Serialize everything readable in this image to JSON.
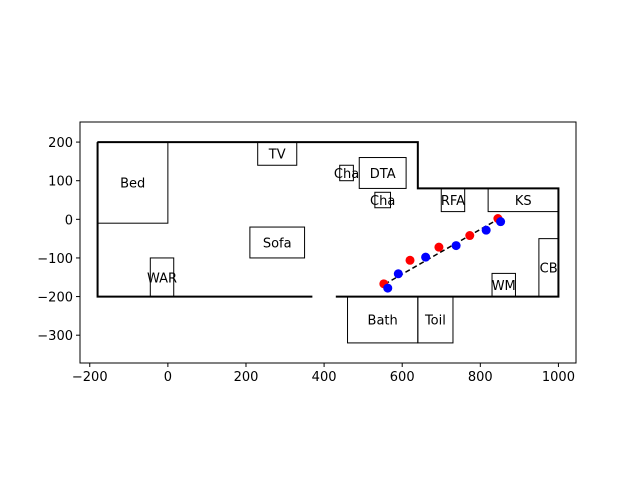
{
  "chart_data": {
    "type": "scatter",
    "title": "",
    "xlabel": "",
    "ylabel": "",
    "xlim": [
      -225,
      1045
    ],
    "ylim": [
      -372,
      252
    ],
    "xticks": [
      -200,
      0,
      200,
      400,
      600,
      800,
      1000
    ],
    "yticks": [
      -300,
      -200,
      -100,
      0,
      100,
      200
    ],
    "grid": false,
    "walls": [
      {
        "name": "outer-wall",
        "points": [
          [
            -180,
            200
          ],
          [
            640,
            200
          ],
          [
            640,
            80
          ],
          [
            1000,
            80
          ],
          [
            1000,
            -200
          ],
          [
            -180,
            -200
          ],
          [
            -180,
            200
          ]
        ]
      }
    ],
    "doorways": [
      {
        "name": "doorway-gap",
        "x": [
          370,
          430
        ],
        "y": -200
      }
    ],
    "rooms": [
      {
        "label": "Bed",
        "x": -180,
        "y": -10,
        "w": 180,
        "h": 210
      },
      {
        "label": "TV",
        "x": 230,
        "y": 140,
        "w": 100,
        "h": 60
      },
      {
        "label": "Cha",
        "x": 440,
        "y": 100,
        "w": 35,
        "h": 40
      },
      {
        "label": "DTA",
        "x": 490,
        "y": 80,
        "w": 120,
        "h": 80
      },
      {
        "label": "Cha",
        "x": 530,
        "y": 30,
        "w": 40,
        "h": 40
      },
      {
        "label": "RFA",
        "x": 700,
        "y": 20,
        "w": 60,
        "h": 60
      },
      {
        "label": "KS",
        "x": 820,
        "y": 20,
        "w": 180,
        "h": 60
      },
      {
        "label": "Sofa",
        "x": 210,
        "y": -100,
        "w": 140,
        "h": 80
      },
      {
        "label": "WAR",
        "x": -45,
        "y": -200,
        "w": 60,
        "h": 100
      },
      {
        "label": "CB",
        "x": 950,
        "y": -200,
        "w": 50,
        "h": 150
      },
      {
        "label": "WM",
        "x": 830,
        "y": -200,
        "w": 60,
        "h": 60
      },
      {
        "label": "Bath",
        "x": 460,
        "y": -320,
        "w": 180,
        "h": 120
      },
      {
        "label": "Toil",
        "x": 640,
        "y": -320,
        "w": 90,
        "h": 120
      }
    ],
    "series": [
      {
        "color": "#ff0000",
        "points": [
          [
            553,
            -167
          ],
          [
            620,
            -106
          ],
          [
            694,
            -72
          ],
          [
            773,
            -42
          ],
          [
            845,
            2
          ]
        ]
      },
      {
        "color": "#0000ff",
        "points": [
          [
            563,
            -178
          ],
          [
            590,
            -141
          ],
          [
            660,
            -98
          ],
          [
            738,
            -68
          ],
          [
            815,
            -28
          ],
          [
            852,
            -6
          ]
        ]
      }
    ],
    "path": {
      "color": "#000000",
      "style": "dashed",
      "points": [
        [
          555,
          -168
        ],
        [
          852,
          4
        ]
      ]
    }
  }
}
